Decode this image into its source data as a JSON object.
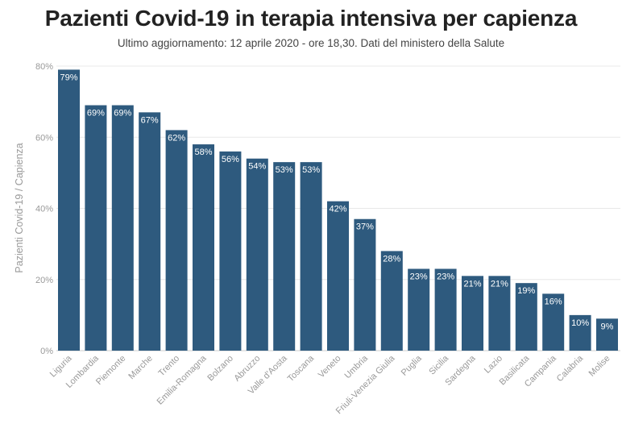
{
  "title": "Pazienti Covid-19 in terapia intensiva per capienza",
  "subtitle": "Ultimo aggiornamento: 12 aprile 2020 - ore 18,30. Dati del ministero della Salute",
  "chart_data": {
    "type": "bar",
    "title": "Pazienti Covid-19 in terapia intensiva per capienza",
    "subtitle": "Ultimo aggiornamento: 12 aprile 2020 - ore 18,30. Dati del ministero della Salute",
    "xlabel": "",
    "ylabel": "Pazienti Covid-19 / Capienza",
    "ylim": [
      0,
      80
    ],
    "yticks": [
      "0%",
      "20%",
      "40%",
      "60%",
      "80%"
    ],
    "grid": true,
    "bar_color": "#2e5a7e",
    "categories": [
      "Liguria",
      "Lombardia",
      "Piemonte",
      "Marche",
      "Trento",
      "Emilia-Romagna",
      "Bolzano",
      "Abruzzo",
      "Valle d'Aosta",
      "Toscana",
      "Veneto",
      "Umbria",
      "Friuli-Venezia Giulia",
      "Puglia",
      "Sicilia",
      "Sardegna",
      "Lazio",
      "Basilicata",
      "Campania",
      "Calabria",
      "Molise"
    ],
    "values": [
      79,
      69,
      69,
      67,
      62,
      58,
      56,
      54,
      53,
      53,
      42,
      37,
      28,
      23,
      23,
      21,
      21,
      19,
      16,
      10,
      9
    ],
    "data_labels": [
      "79%",
      "69%",
      "69%",
      "67%",
      "62%",
      "58%",
      "56%",
      "54%",
      "53%",
      "53%",
      "42%",
      "37%",
      "28%",
      "23%",
      "23%",
      "21%",
      "21%",
      "19%",
      "16%",
      "10%",
      "9%"
    ]
  }
}
